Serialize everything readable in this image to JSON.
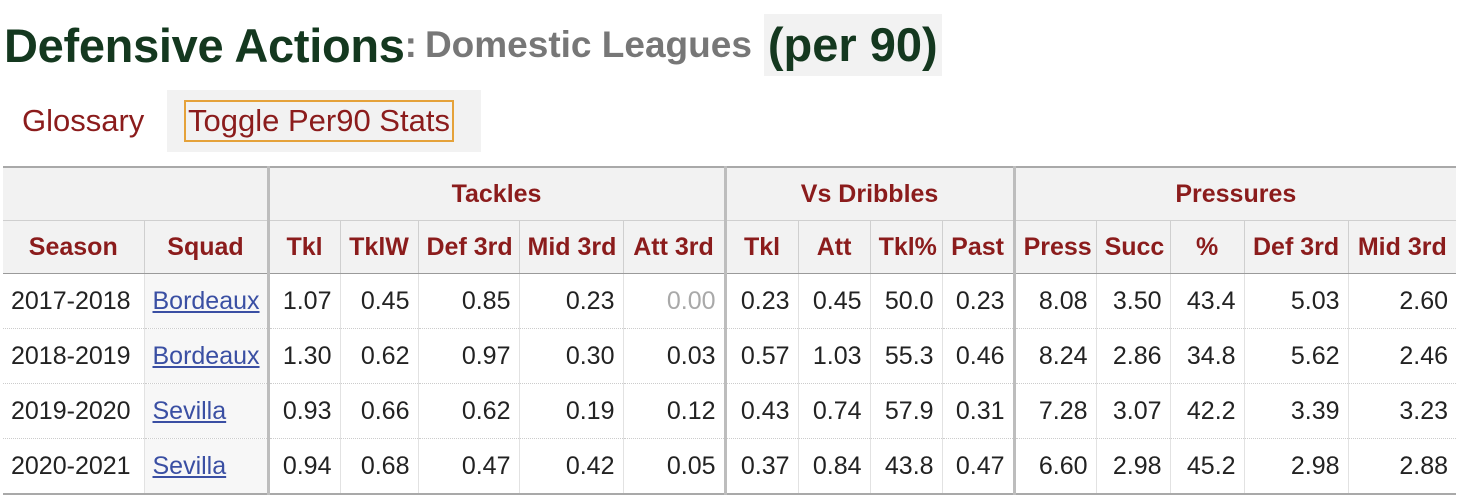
{
  "title": {
    "main": "Defensive Actions",
    "colon": ":",
    "subtitle": "Domestic Leagues",
    "per90": "(per 90)"
  },
  "toolbar": {
    "glossary_label": "Glossary",
    "toggle_label": "Toggle Per90 Stats"
  },
  "table": {
    "groups": {
      "tackles": "Tackles",
      "vs_dribbles": "Vs Dribbles",
      "pressures": "Pressures"
    },
    "columns": [
      "Season",
      "Squad",
      "Tkl",
      "TklW",
      "Def 3rd",
      "Mid 3rd",
      "Att 3rd",
      "Tkl",
      "Att",
      "Tkl%",
      "Past",
      "Press",
      "Succ",
      "%",
      "Def 3rd",
      "Mid 3rd"
    ],
    "rows": [
      [
        "2017-2018",
        "Bordeaux",
        "1.07",
        "0.45",
        "0.85",
        "0.23",
        "0.00",
        "0.23",
        "0.45",
        "50.0",
        "0.23",
        "8.08",
        "3.50",
        "43.4",
        "5.03",
        "2.60"
      ],
      [
        "2018-2019",
        "Bordeaux",
        "1.30",
        "0.62",
        "0.97",
        "0.30",
        "0.03",
        "0.57",
        "1.03",
        "55.3",
        "0.46",
        "8.24",
        "2.86",
        "34.8",
        "5.62",
        "2.46"
      ],
      [
        "2019-2020",
        "Sevilla",
        "0.93",
        "0.66",
        "0.62",
        "0.19",
        "0.12",
        "0.43",
        "0.74",
        "57.9",
        "0.31",
        "7.28",
        "3.07",
        "42.2",
        "3.39",
        "3.23"
      ],
      [
        "2020-2021",
        "Sevilla",
        "0.94",
        "0.68",
        "0.47",
        "0.42",
        "0.05",
        "0.37",
        "0.84",
        "43.8",
        "0.47",
        "6.60",
        "2.98",
        "45.2",
        "2.98",
        "2.88"
      ]
    ]
  },
  "colors": {
    "title": "#14381f",
    "subtitle": "#777777",
    "header_text": "#8b1c1c",
    "link": "#3a4fa3",
    "toggle_border": "#e5a23a"
  }
}
